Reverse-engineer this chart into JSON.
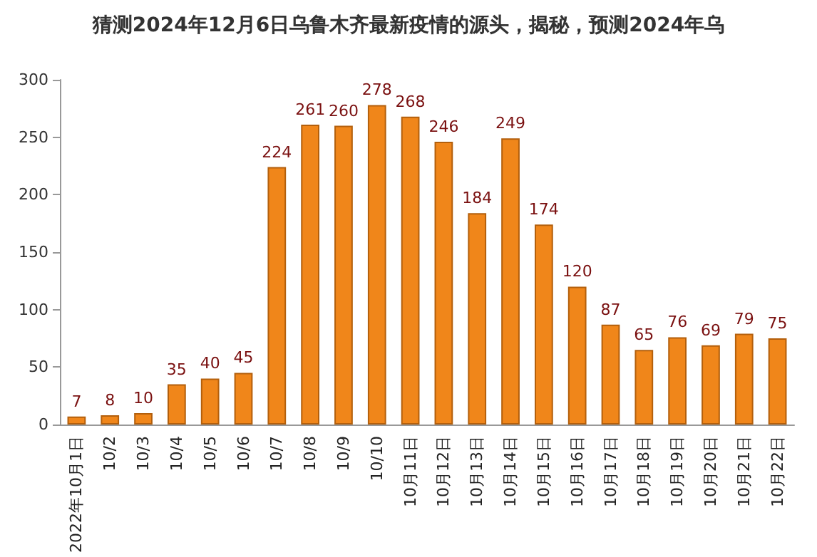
{
  "chart_data": {
    "type": "bar",
    "title": "猜测2024年12月6日乌鲁木齐最新疫情的源头，揭秘，预测2024年乌",
    "categories": [
      "2022年10月1日",
      "10/2",
      "10/3",
      "10/4",
      "10/5",
      "10/6",
      "10/7",
      "10/8",
      "10/9",
      "10/10",
      "10月11日",
      "10月12日",
      "10月13日",
      "10月14日",
      "10月15日",
      "10月16日",
      "10月17日",
      "10月18日",
      "10月19日",
      "10月20日",
      "10月21日",
      "10月22日"
    ],
    "values": [
      7,
      8,
      10,
      35,
      40,
      45,
      224,
      261,
      260,
      278,
      268,
      246,
      184,
      249,
      174,
      120,
      87,
      65,
      76,
      69,
      79,
      75
    ],
    "color": "#f0861a",
    "data_labels": true,
    "ylim": [
      0,
      300
    ],
    "yticks": [
      0,
      50,
      100,
      150,
      200,
      250,
      300
    ],
    "grid": false
  }
}
